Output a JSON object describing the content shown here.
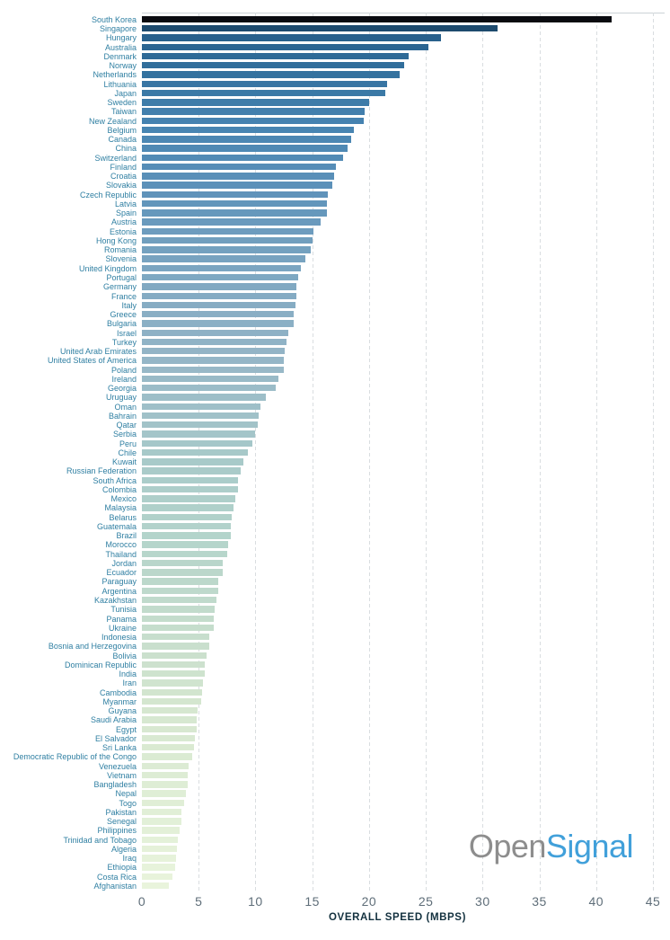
{
  "chart_data": {
    "type": "bar",
    "orientation": "horizontal",
    "title": "",
    "xlabel": "OVERALL SPEED (MBPS)",
    "ylabel": "",
    "xlim": [
      0,
      45
    ],
    "xticks": [
      0,
      5,
      10,
      15,
      20,
      25,
      30,
      35,
      40,
      45
    ],
    "grid": "vertical dashed",
    "legend": "none",
    "categories": [
      "South Korea",
      "Singapore",
      "Hungary",
      "Australia",
      "Denmark",
      "Norway",
      "Netherlands",
      "Lithuania",
      "Japan",
      "Sweden",
      "Taiwan",
      "New Zealand",
      "Belgium",
      "Canada",
      "China",
      "Switzerland",
      "Finland",
      "Croatia",
      "Slovakia",
      "Czech Republic",
      "Latvia",
      "Spain",
      "Austria",
      "Estonia",
      "Hong Kong",
      "Romania",
      "Slovenia",
      "United Kingdom",
      "Portugal",
      "Germany",
      "France",
      "Italy",
      "Greece",
      "Bulgaria",
      "Israel",
      "Turkey",
      "United Arab Emirates",
      "United States of America",
      "Poland",
      "Ireland",
      "Georgia",
      "Uruguay",
      "Oman",
      "Bahrain",
      "Qatar",
      "Serbia",
      "Peru",
      "Chile",
      "Kuwait",
      "Russian Federation",
      "South Africa",
      "Colombia",
      "Mexico",
      "Malaysia",
      "Belarus",
      "Guatemala",
      "Brazil",
      "Morocco",
      "Thailand",
      "Jordan",
      "Ecuador",
      "Paraguay",
      "Argentina",
      "Kazakhstan",
      "Tunisia",
      "Panama",
      "Ukraine",
      "Indonesia",
      "Bosnia and Herzegovina",
      "Bolivia",
      "Dominican Republic",
      "India",
      "Iran",
      "Cambodia",
      "Myanmar",
      "Guyana",
      "Saudi Arabia",
      "Egypt",
      "El Salvador",
      "Sri Lanka",
      "Democratic Republic of the Congo",
      "Venezuela",
      "Vietnam",
      "Bangladesh",
      "Nepal",
      "Togo",
      "Pakistan",
      "Senegal",
      "Philippines",
      "Trinidad and Tobago",
      "Algeria",
      "Iraq",
      "Ethiopia",
      "Costa Rica",
      "Afghanistan"
    ],
    "values": [
      41.4,
      31.3,
      26.3,
      25.2,
      23.5,
      23.1,
      22.7,
      21.6,
      21.4,
      20.0,
      19.6,
      19.5,
      18.7,
      18.4,
      18.1,
      17.7,
      17.1,
      16.9,
      16.8,
      16.4,
      16.3,
      16.3,
      15.7,
      15.1,
      15.0,
      14.9,
      14.4,
      14.0,
      13.8,
      13.6,
      13.6,
      13.5,
      13.4,
      13.4,
      12.9,
      12.7,
      12.6,
      12.5,
      12.5,
      12.0,
      11.8,
      10.9,
      10.4,
      10.3,
      10.2,
      10.0,
      9.7,
      9.3,
      8.9,
      8.7,
      8.5,
      8.5,
      8.2,
      8.1,
      7.9,
      7.8,
      7.8,
      7.6,
      7.5,
      7.1,
      7.1,
      6.7,
      6.7,
      6.6,
      6.4,
      6.3,
      6.3,
      5.9,
      5.9,
      5.7,
      5.5,
      5.5,
      5.4,
      5.3,
      5.2,
      4.9,
      4.8,
      4.8,
      4.7,
      4.6,
      4.4,
      4.1,
      4.0,
      4.0,
      3.9,
      3.7,
      3.5,
      3.5,
      3.3,
      3.2,
      3.1,
      3.0,
      2.9,
      2.7,
      2.4
    ],
    "bar_color_gradient_stops": [
      {
        "t": 0.0,
        "color": "#0a0b10"
      },
      {
        "t": 0.011,
        "color": "#1e4c70"
      },
      {
        "t": 0.022,
        "color": "#29618e"
      },
      {
        "t": 0.06,
        "color": "#33719e"
      },
      {
        "t": 0.12,
        "color": "#4683b1"
      },
      {
        "t": 0.2,
        "color": "#5f93ba"
      },
      {
        "t": 0.3,
        "color": "#7fa8c2"
      },
      {
        "t": 0.4,
        "color": "#97b7c7"
      },
      {
        "t": 0.5,
        "color": "#a7c9c9"
      },
      {
        "t": 0.6,
        "color": "#b4d4cb"
      },
      {
        "t": 0.7,
        "color": "#c5ddcc"
      },
      {
        "t": 0.8,
        "color": "#d6e7d0"
      },
      {
        "t": 0.9,
        "color": "#e0eed6"
      },
      {
        "t": 1.0,
        "color": "#e9f4dc"
      }
    ]
  },
  "colors": {
    "label_text": "#2f7fa2",
    "tick_text": "#5f6e79",
    "axis_title_text": "#12303e",
    "gridline": "#d9dde0",
    "logo_open": "#8d8d8d",
    "logo_signal": "#41a0da"
  },
  "logo": {
    "open": "Open",
    "signal": "Signal"
  }
}
